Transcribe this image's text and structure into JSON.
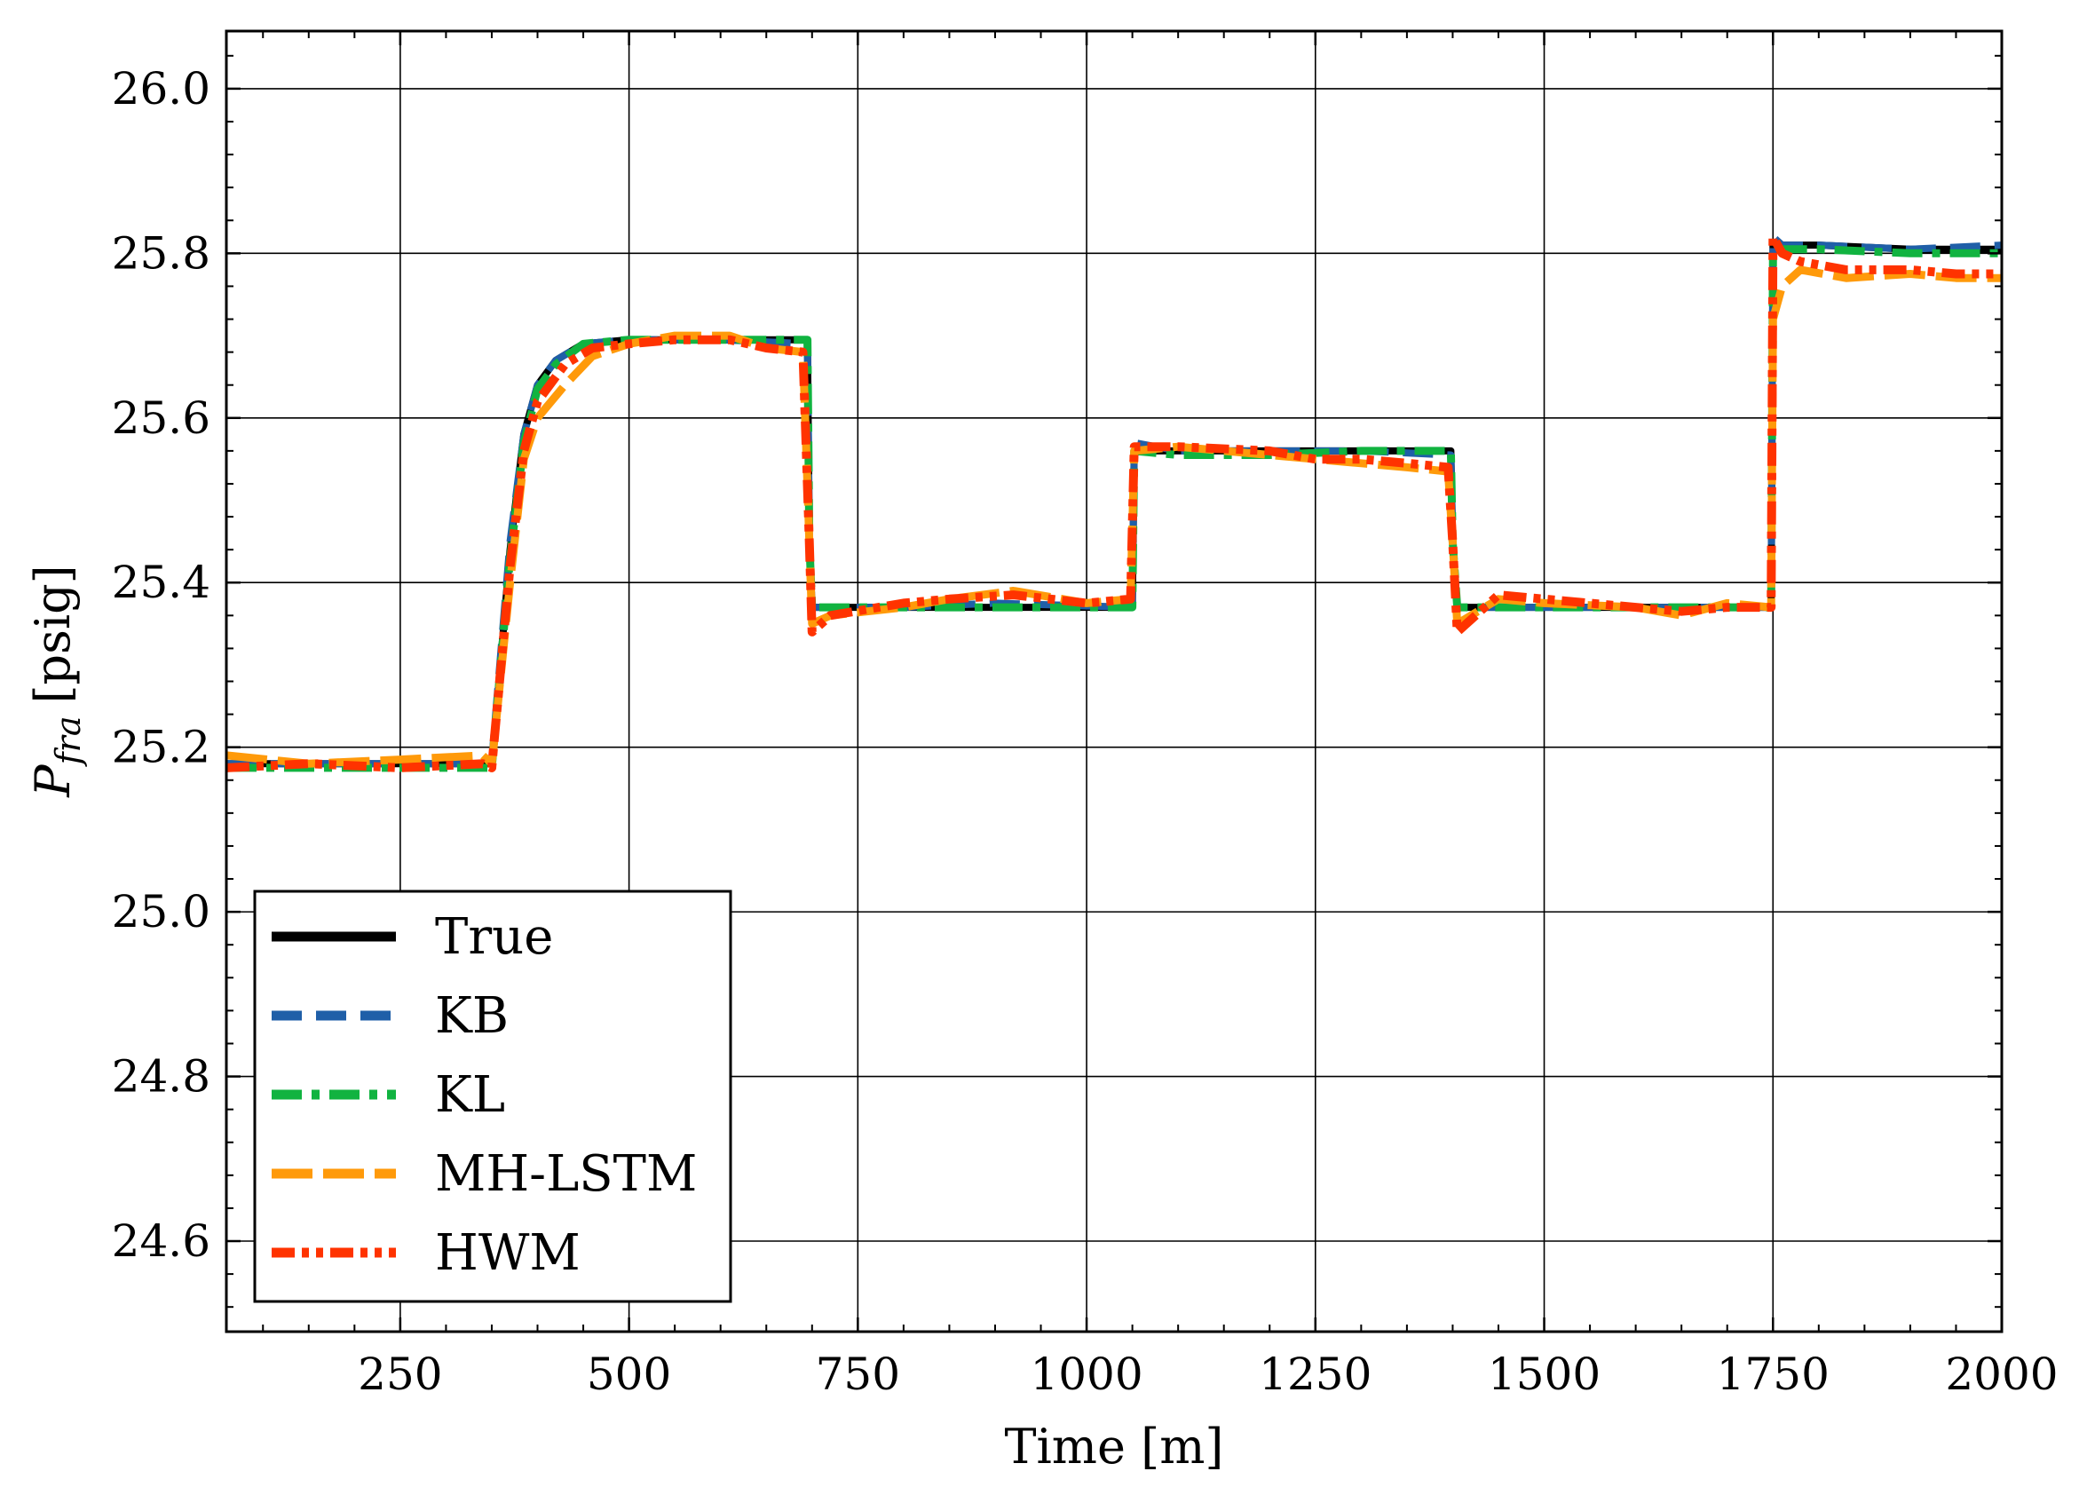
{
  "chart_data": {
    "type": "line",
    "xlabel": "Time [m]",
    "ylabel_main": "P",
    "ylabel_sub": "fra",
    "ylabel_unit": "[psig]",
    "xlim": [
      60,
      2000
    ],
    "ylim": [
      24.49,
      26.07
    ],
    "xticks": [
      250,
      500,
      750,
      1000,
      1250,
      1500,
      1750,
      2000
    ],
    "yticks": [
      24.6,
      24.8,
      25.0,
      25.2,
      25.4,
      25.6,
      25.8,
      26.0
    ],
    "xtick_labels": [
      "250",
      "500",
      "750",
      "1000",
      "1250",
      "1500",
      "1750",
      "2000"
    ],
    "ytick_labels": [
      "24.6",
      "24.8",
      "25.0",
      "25.2",
      "25.4",
      "25.6",
      "25.8",
      "26.0"
    ],
    "grid": true,
    "legend_position": "lower-left",
    "series": [
      {
        "name": "True",
        "color": "#000000",
        "style": "solid",
        "x": [
          60,
          350,
          352,
          370,
          385,
          400,
          420,
          450,
          500,
          600,
          695,
          697,
          700,
          720,
          800,
          900,
          1050,
          1052,
          1100,
          1200,
          1300,
          1398,
          1400,
          1405,
          1450,
          1600,
          1748,
          1750,
          1760,
          1800,
          1900,
          2000
        ],
        "y": [
          25.18,
          25.18,
          25.2,
          25.44,
          25.58,
          25.64,
          25.67,
          25.69,
          25.695,
          25.695,
          25.695,
          25.45,
          25.37,
          25.37,
          25.37,
          25.37,
          25.37,
          25.56,
          25.56,
          25.56,
          25.56,
          25.56,
          25.45,
          25.37,
          25.37,
          25.37,
          25.37,
          25.81,
          25.81,
          25.81,
          25.805,
          25.805
        ]
      },
      {
        "name": "KB",
        "color": "#1f5fa8",
        "style": "dashed",
        "x": [
          60,
          350,
          352,
          370,
          385,
          400,
          420,
          450,
          500,
          600,
          695,
          697,
          700,
          720,
          800,
          900,
          1050,
          1052,
          1100,
          1200,
          1300,
          1398,
          1400,
          1405,
          1450,
          1600,
          1748,
          1750,
          1760,
          1800,
          1900,
          2000
        ],
        "y": [
          25.18,
          25.18,
          25.21,
          25.45,
          25.58,
          25.64,
          25.67,
          25.69,
          25.695,
          25.695,
          25.69,
          25.45,
          25.37,
          25.37,
          25.37,
          25.375,
          25.37,
          25.57,
          25.56,
          25.56,
          25.56,
          25.555,
          25.45,
          25.37,
          25.37,
          25.37,
          25.37,
          25.82,
          25.81,
          25.81,
          25.805,
          25.81
        ]
      },
      {
        "name": "KL",
        "color": "#11b340",
        "style": "dashdot",
        "x": [
          60,
          350,
          352,
          370,
          385,
          400,
          420,
          450,
          500,
          600,
          695,
          697,
          700,
          720,
          800,
          900,
          1050,
          1052,
          1100,
          1200,
          1300,
          1398,
          1400,
          1405,
          1450,
          1600,
          1748,
          1750,
          1760,
          1800,
          1900,
          2000
        ],
        "y": [
          25.175,
          25.175,
          25.2,
          25.43,
          25.57,
          25.635,
          25.665,
          25.69,
          25.695,
          25.695,
          25.695,
          25.45,
          25.37,
          25.37,
          25.37,
          25.37,
          25.37,
          25.56,
          25.555,
          25.555,
          25.56,
          25.56,
          25.45,
          25.37,
          25.37,
          25.37,
          25.37,
          25.8,
          25.805,
          25.805,
          25.8,
          25.8
        ]
      },
      {
        "name": "MH-LSTM",
        "color": "#ff9a0a",
        "style": "longdash",
        "x": [
          60,
          150,
          250,
          340,
          350,
          352,
          370,
          385,
          400,
          430,
          460,
          500,
          550,
          610,
          650,
          690,
          697,
          700,
          720,
          800,
          850,
          920,
          1000,
          1048,
          1052,
          1100,
          1200,
          1250,
          1300,
          1350,
          1395,
          1400,
          1405,
          1450,
          1500,
          1600,
          1650,
          1700,
          1748,
          1750,
          1760,
          1780,
          1830,
          1900,
          1950,
          2000
        ],
        "y": [
          25.19,
          25.18,
          25.185,
          25.19,
          25.18,
          25.2,
          25.4,
          25.55,
          25.6,
          25.64,
          25.675,
          25.69,
          25.7,
          25.7,
          25.685,
          25.68,
          25.45,
          25.35,
          25.36,
          25.37,
          25.38,
          25.39,
          25.375,
          25.38,
          25.56,
          25.565,
          25.555,
          25.55,
          25.545,
          25.54,
          25.535,
          25.45,
          25.35,
          25.38,
          25.375,
          25.37,
          25.36,
          25.375,
          25.37,
          25.72,
          25.76,
          25.78,
          25.77,
          25.775,
          25.77,
          25.77
        ]
      },
      {
        "name": "HWM",
        "color": "#ff3300",
        "style": "dashdotdot",
        "x": [
          60,
          150,
          250,
          340,
          350,
          352,
          370,
          385,
          400,
          430,
          460,
          500,
          550,
          610,
          650,
          690,
          697,
          700,
          720,
          800,
          850,
          920,
          1000,
          1048,
          1052,
          1100,
          1200,
          1250,
          1300,
          1350,
          1395,
          1400,
          1405,
          1450,
          1500,
          1600,
          1650,
          1700,
          1748,
          1750,
          1760,
          1780,
          1830,
          1900,
          1950,
          2000
        ],
        "y": [
          25.175,
          25.18,
          25.175,
          25.18,
          25.175,
          25.2,
          25.42,
          25.56,
          25.62,
          25.665,
          25.685,
          25.69,
          25.695,
          25.695,
          25.685,
          25.68,
          25.45,
          25.34,
          25.36,
          25.375,
          25.38,
          25.385,
          25.375,
          25.38,
          25.565,
          25.565,
          25.56,
          25.55,
          25.55,
          25.545,
          25.54,
          25.45,
          25.34,
          25.385,
          25.38,
          25.37,
          25.365,
          25.37,
          25.37,
          25.82,
          25.8,
          25.79,
          25.78,
          25.78,
          25.775,
          25.775
        ]
      }
    ]
  }
}
